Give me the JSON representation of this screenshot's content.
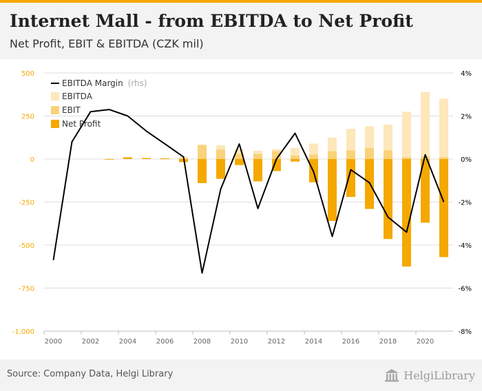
{
  "header": {
    "title": "Internet Mall - from EBITDA to Net Profit",
    "subtitle": "Net Profit, EBIT & EBITDA (CZK mil)"
  },
  "footer": {
    "source": "Source: Company Data, Helgi Library",
    "brand": "HelgiLibrary",
    "brand_icon": "library-building-icon"
  },
  "colors": {
    "net_profit": "#f5a800",
    "ebit": "#f9d27a",
    "ebitda": "#fde7bb",
    "margin_line": "#000000",
    "left_axis": "#f5a800",
    "right_axis": "#000000",
    "grid": "#dddddd"
  },
  "chart_data": {
    "type": "bar",
    "years": [
      2000,
      2001,
      2002,
      2003,
      2004,
      2005,
      2006,
      2007,
      2008,
      2009,
      2010,
      2011,
      2012,
      2013,
      2014,
      2015,
      2016,
      2017,
      2018,
      2019,
      2020,
      2021
    ],
    "series": [
      {
        "name": "EBITDA",
        "values": [
          0,
          0,
          0,
          0,
          8,
          6,
          3,
          15,
          85,
          80,
          58,
          48,
          58,
          65,
          90,
          125,
          175,
          190,
          200,
          275,
          390,
          350
        ]
      },
      {
        "name": "EBIT",
        "values": [
          0,
          0,
          0,
          -4,
          6,
          4,
          2,
          5,
          80,
          55,
          30,
          30,
          45,
          20,
          25,
          45,
          50,
          65,
          50,
          10,
          15,
          10
        ]
      },
      {
        "name": "Net Profit",
        "values": [
          0,
          0,
          0,
          -2,
          10,
          6,
          4,
          -18,
          -140,
          -115,
          -35,
          -130,
          -70,
          -15,
          -135,
          -360,
          -220,
          -290,
          -465,
          -625,
          -370,
          -570
        ]
      }
    ],
    "ebit_values_note": "",
    "margin": {
      "name": "EBITDA Margin",
      "name_suffix": "(rhs)",
      "values": [
        -4.7,
        0.8,
        2.2,
        2.3,
        2.0,
        1.3,
        0.7,
        0.1,
        -5.3,
        -1.4,
        0.7,
        -2.3,
        0.0,
        1.2,
        -0.6,
        -3.6,
        -0.5,
        -1.1,
        -2.7,
        -3.4,
        0.2,
        -2.0
      ]
    },
    "ebit_display_values": [
      0,
      0,
      0,
      0,
      0,
      0,
      0,
      0,
      70,
      50,
      0,
      0,
      0,
      0,
      0,
      0,
      0,
      0,
      0,
      0,
      0,
      0
    ],
    "x_ticks": [
      "2000",
      "2002",
      "2004",
      "2006",
      "2008",
      "2010",
      "2012",
      "2014",
      "2016",
      "2018",
      "2020"
    ],
    "y_left": {
      "ticks": [
        "500",
        "250",
        "0",
        "-250",
        "-500",
        "-750",
        "-1,000"
      ],
      "min": -1000,
      "max": 500
    },
    "y_right": {
      "ticks": [
        "4%",
        "2%",
        "0%",
        "-2%",
        "-4%",
        "-6%",
        "-8%"
      ],
      "min": -8,
      "max": 4
    },
    "legend": [
      "EBITDA Margin",
      "EBITDA",
      "EBIT",
      "Net Profit"
    ]
  }
}
